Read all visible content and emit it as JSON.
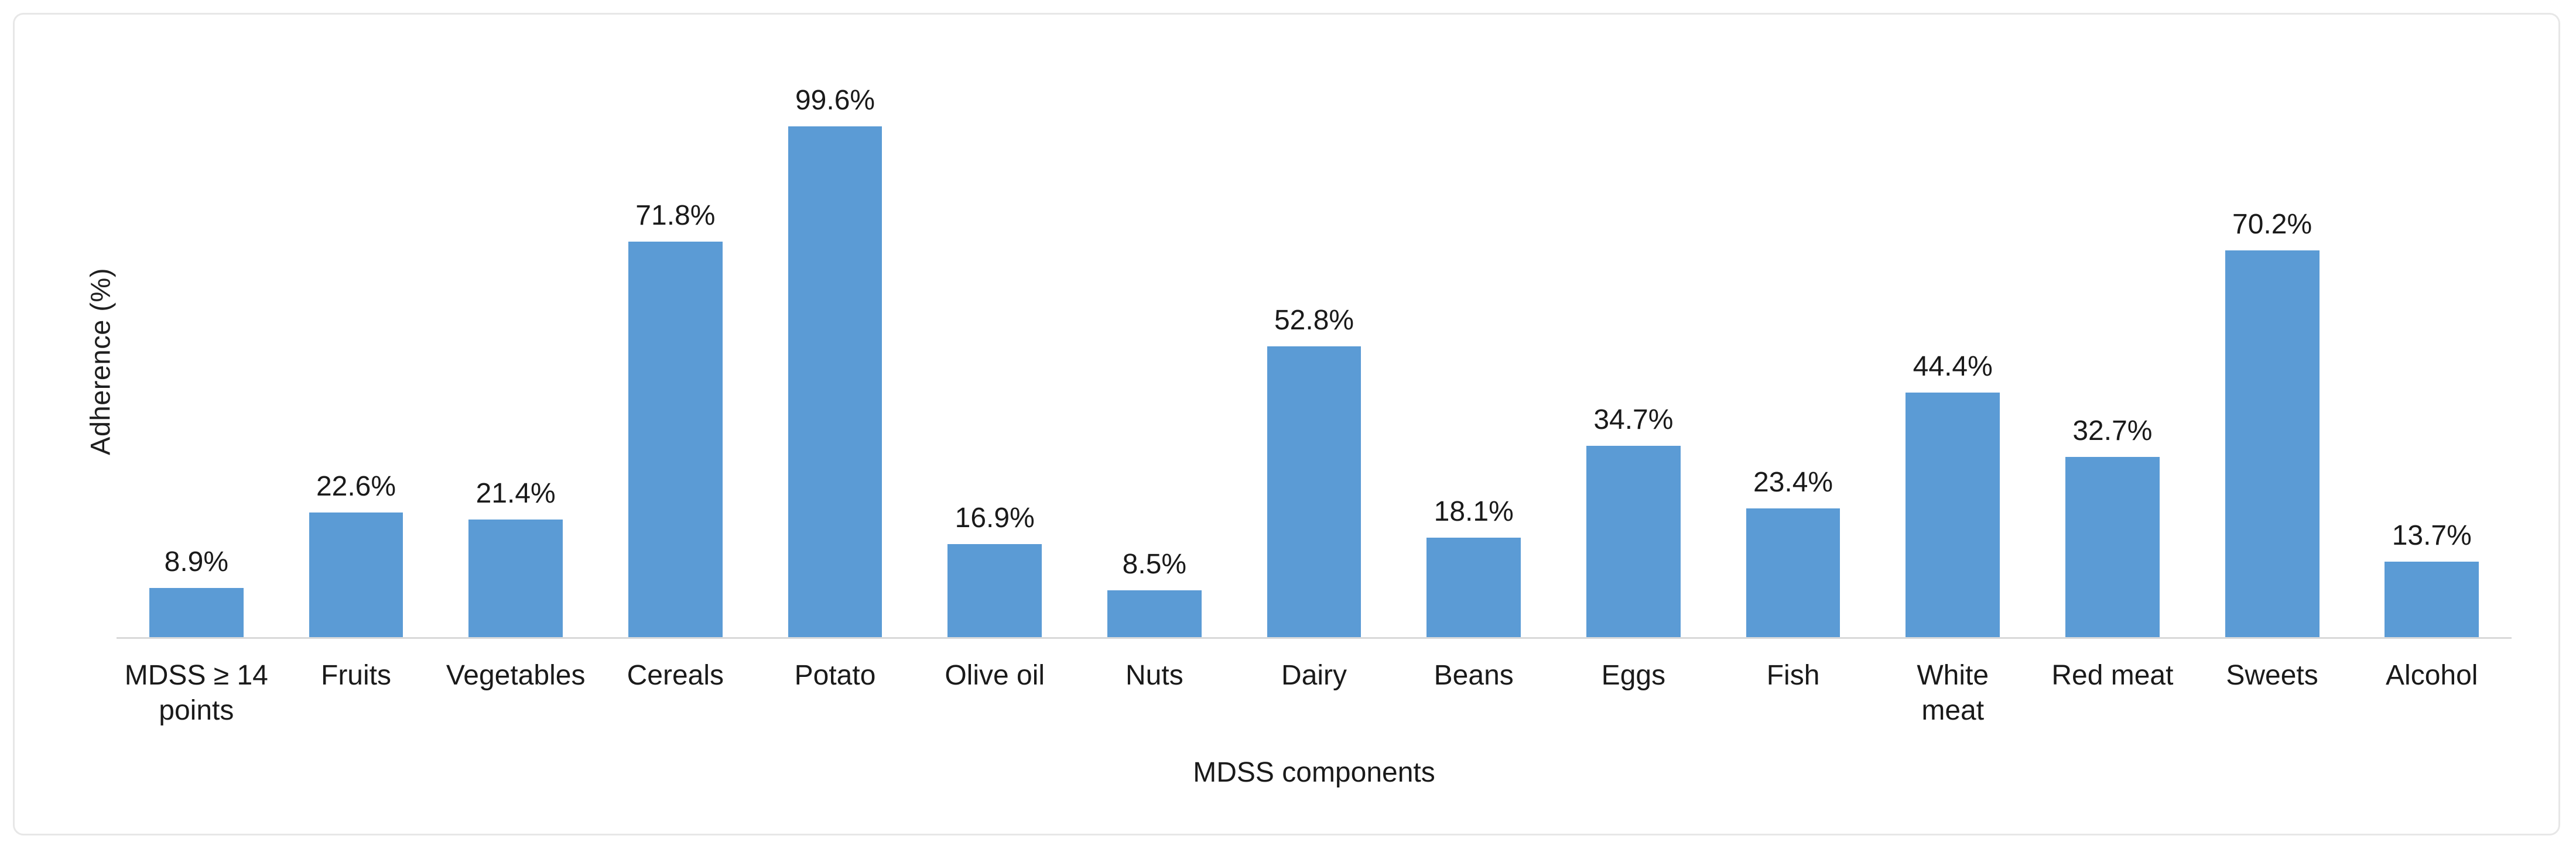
{
  "figure": {
    "background_color": "#ffffff",
    "card_border_color": "#e7e7e7"
  },
  "chart_data": {
    "type": "bar",
    "title": "",
    "xlabel": "MDSS components",
    "ylabel": "Adherence (%)",
    "ylim": [
      0,
      100
    ],
    "grid": false,
    "legend": false,
    "bar_color": "#5b9bd5",
    "axis_line_color": "#d9d9d9",
    "categories": [
      "MDSS ≥ 14 points",
      "Fruits",
      "Vegetables",
      "Cereals",
      "Potato",
      "Olive oil",
      "Nuts",
      "Dairy",
      "Beans",
      "Eggs",
      "Fish",
      "White meat",
      "Red meat",
      "Sweets",
      "Alcohol"
    ],
    "category_display_labels": [
      "MDSS ≥ 14\npoints",
      "Fruits",
      "Vegetables",
      "Cereals",
      "Potato",
      "Olive oil",
      "Nuts",
      "Dairy",
      "Beans",
      "Eggs",
      "Fish",
      "White\nmeat",
      "Red meat",
      "Sweets",
      "Alcohol"
    ],
    "values": [
      8.9,
      22.6,
      21.4,
      71.8,
      99.6,
      16.9,
      8.5,
      52.8,
      18.1,
      34.7,
      23.4,
      44.4,
      32.7,
      70.2,
      13.7
    ],
    "value_labels": [
      "8.9%",
      "22.6%",
      "21.4%",
      "71.8%",
      "99.6%",
      "16.9%",
      "8.5%",
      "52.8%",
      "18.1%",
      "34.7%",
      "23.4%",
      "44.4%",
      "32.7%",
      "70.2%",
      "13.7%"
    ]
  }
}
